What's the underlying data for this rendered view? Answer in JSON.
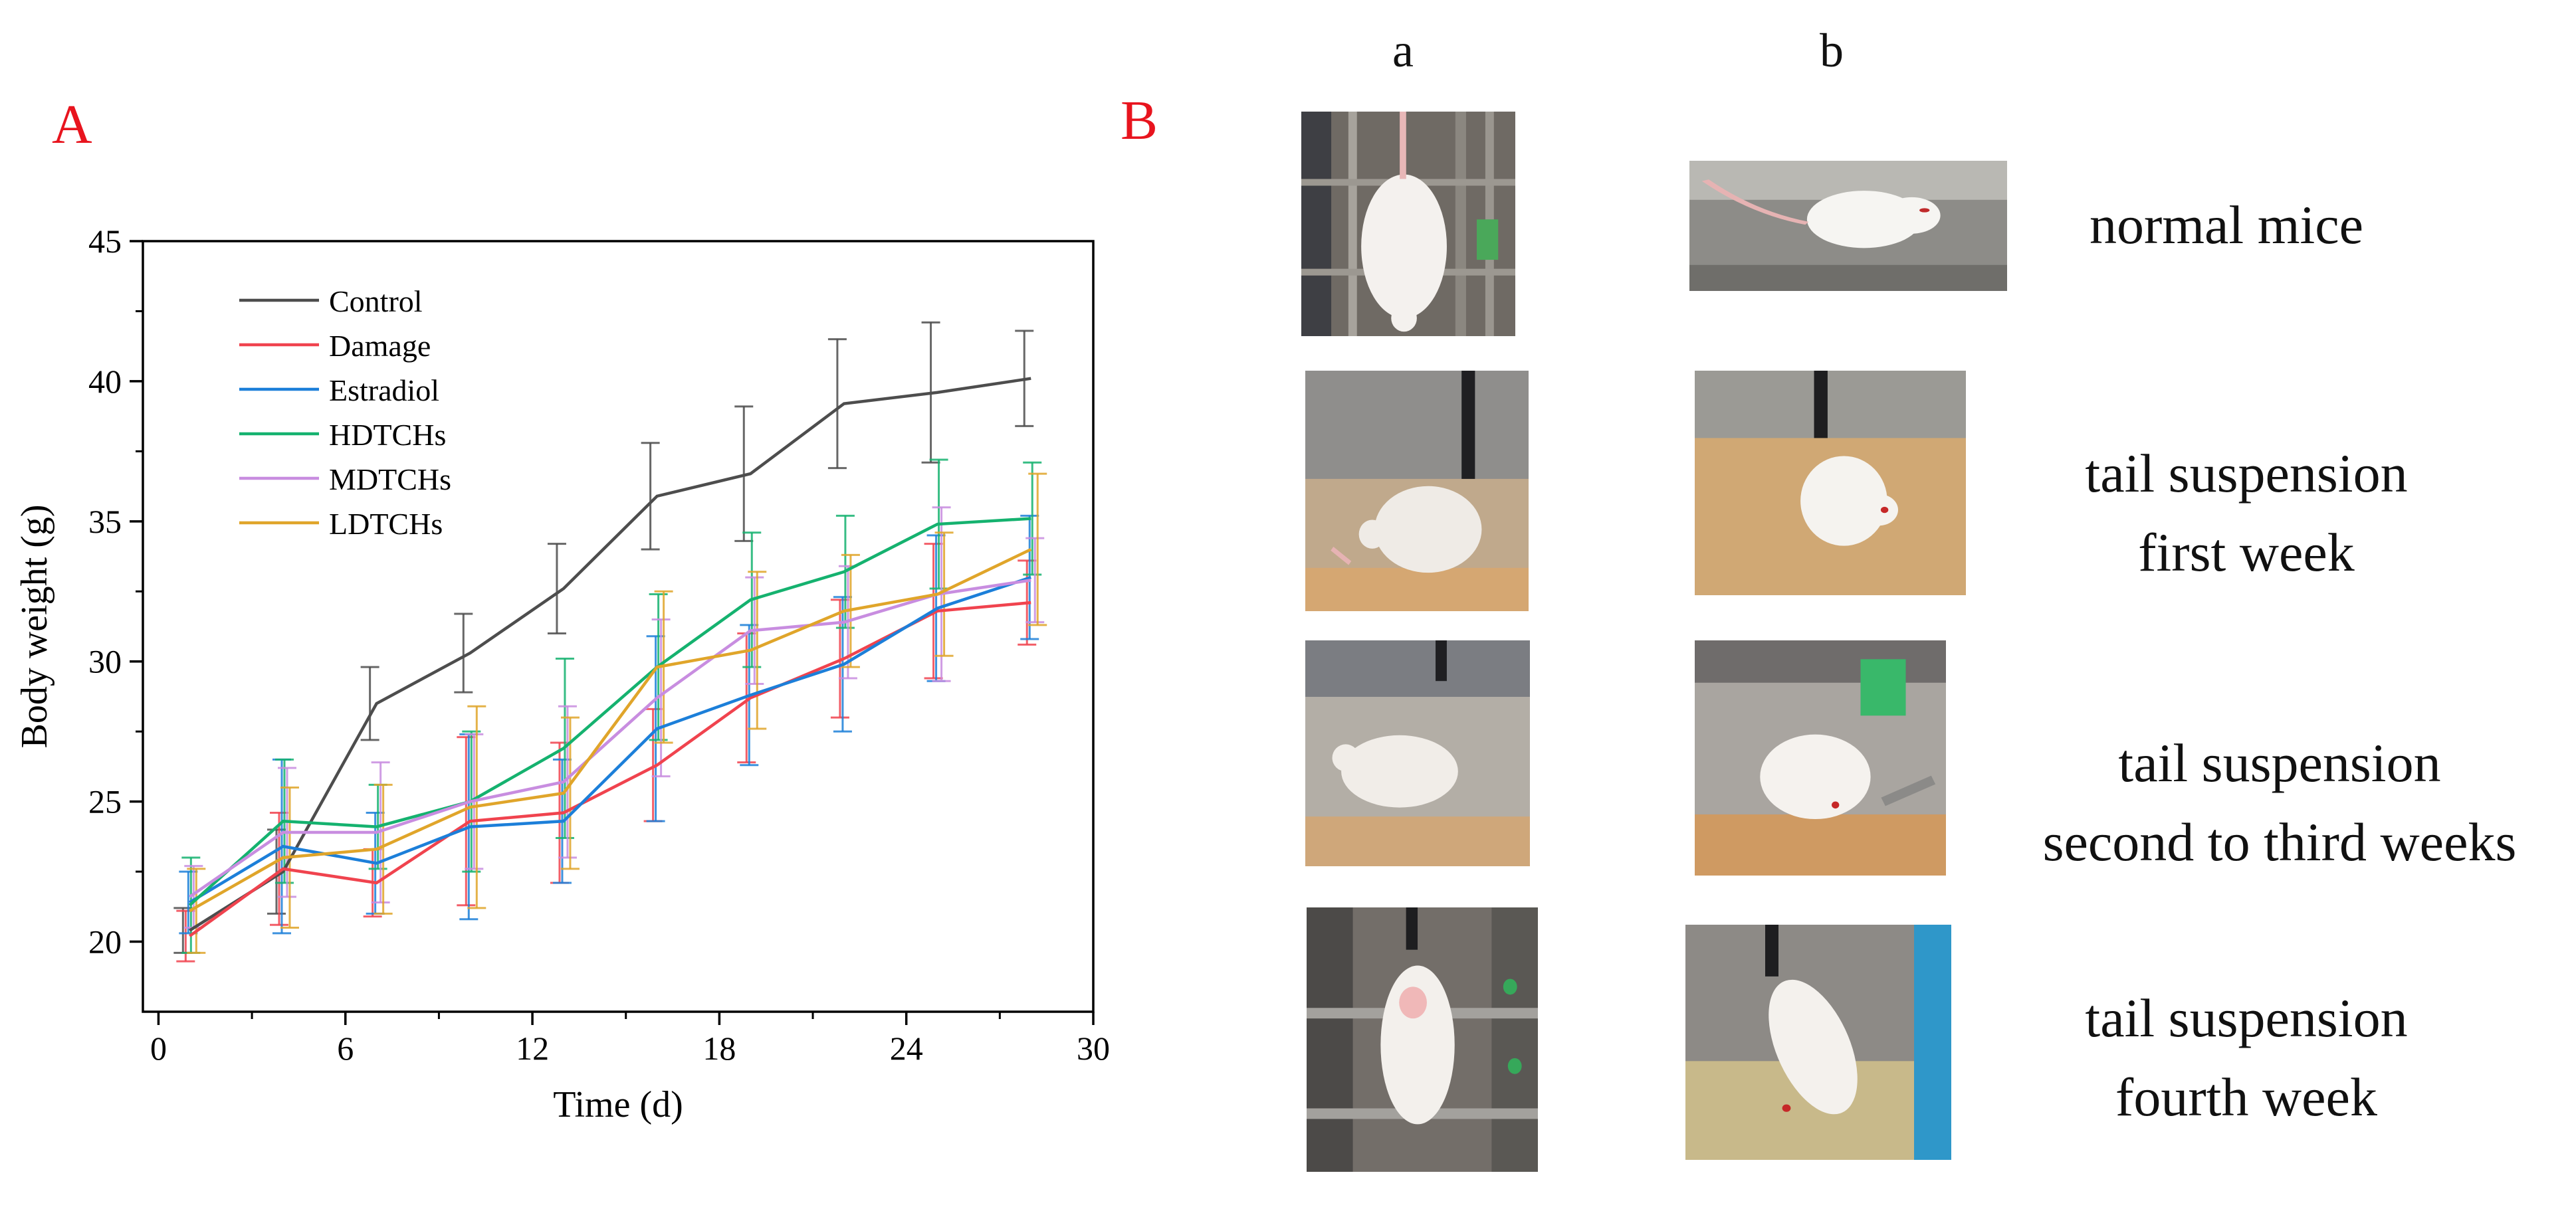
{
  "panel_a": {
    "letter": "A"
  },
  "panel_b": {
    "letter": "B",
    "col_labels": [
      "a",
      "b"
    ],
    "rows": [
      {
        "label_lines": [
          "normal mice"
        ]
      },
      {
        "label_lines": [
          "tail suspension",
          "first week"
        ]
      },
      {
        "label_lines": [
          "tail suspension",
          "second to third weeks"
        ]
      },
      {
        "label_lines": [
          "tail suspension",
          "fourth week"
        ]
      }
    ]
  },
  "chart_data": {
    "type": "line",
    "title": "",
    "xlabel": "Time (d)",
    "ylabel": "Body weight (g)",
    "xlim": [
      -0.5,
      30
    ],
    "ylim": [
      17.5,
      45
    ],
    "xticks": [
      0,
      6,
      12,
      18,
      24,
      30
    ],
    "yticks": [
      20,
      25,
      30,
      35,
      40,
      45
    ],
    "legend_position": "top-left",
    "grid": false,
    "x": [
      1,
      4,
      7,
      10,
      13,
      16,
      19,
      22,
      25,
      28
    ],
    "series": [
      {
        "name": "Control",
        "color": "#4d4d4d",
        "values": [
          20.4,
          22.5,
          28.5,
          30.3,
          32.6,
          35.9,
          36.7,
          39.2,
          39.6,
          40.1
        ],
        "errors": [
          0.8,
          1.5,
          1.3,
          1.4,
          1.6,
          1.9,
          2.4,
          2.3,
          2.5,
          1.7
        ]
      },
      {
        "name": "Damage",
        "color": "#f0434e",
        "values": [
          20.2,
          22.6,
          22.1,
          24.3,
          24.6,
          26.3,
          28.7,
          30.1,
          31.8,
          32.1
        ],
        "errors": [
          0.9,
          2.0,
          1.2,
          3.0,
          2.5,
          2.0,
          2.3,
          2.1,
          2.4,
          1.5
        ]
      },
      {
        "name": "Estradiol",
        "color": "#1c7fd9",
        "values": [
          21.4,
          23.4,
          22.8,
          24.1,
          24.3,
          27.6,
          28.8,
          29.9,
          31.9,
          33.0
        ],
        "errors": [
          1.1,
          3.1,
          1.8,
          3.3,
          2.2,
          3.3,
          2.5,
          2.4,
          2.6,
          2.2
        ]
      },
      {
        "name": "HDTCHs",
        "color": "#15b26f",
        "values": [
          21.3,
          24.3,
          24.1,
          25.0,
          26.9,
          29.8,
          32.2,
          33.2,
          34.9,
          35.1
        ],
        "errors": [
          1.7,
          2.2,
          1.5,
          2.5,
          3.2,
          2.6,
          2.4,
          2.0,
          2.3,
          2.0
        ]
      },
      {
        "name": "MDTCHs",
        "color": "#c88de0",
        "values": [
          21.6,
          23.9,
          23.9,
          25.0,
          25.7,
          28.7,
          31.1,
          31.4,
          32.4,
          32.9
        ],
        "errors": [
          1.1,
          2.3,
          2.5,
          2.4,
          2.7,
          2.8,
          1.9,
          2.0,
          3.1,
          1.5
        ]
      },
      {
        "name": "LDTCHs",
        "color": "#e0a52a",
        "values": [
          21.1,
          23.0,
          23.3,
          24.8,
          25.3,
          29.8,
          30.4,
          31.8,
          32.4,
          34.0
        ],
        "errors": [
          1.5,
          2.5,
          2.3,
          3.6,
          2.7,
          2.7,
          2.8,
          2.0,
          2.2,
          2.7
        ]
      }
    ]
  }
}
